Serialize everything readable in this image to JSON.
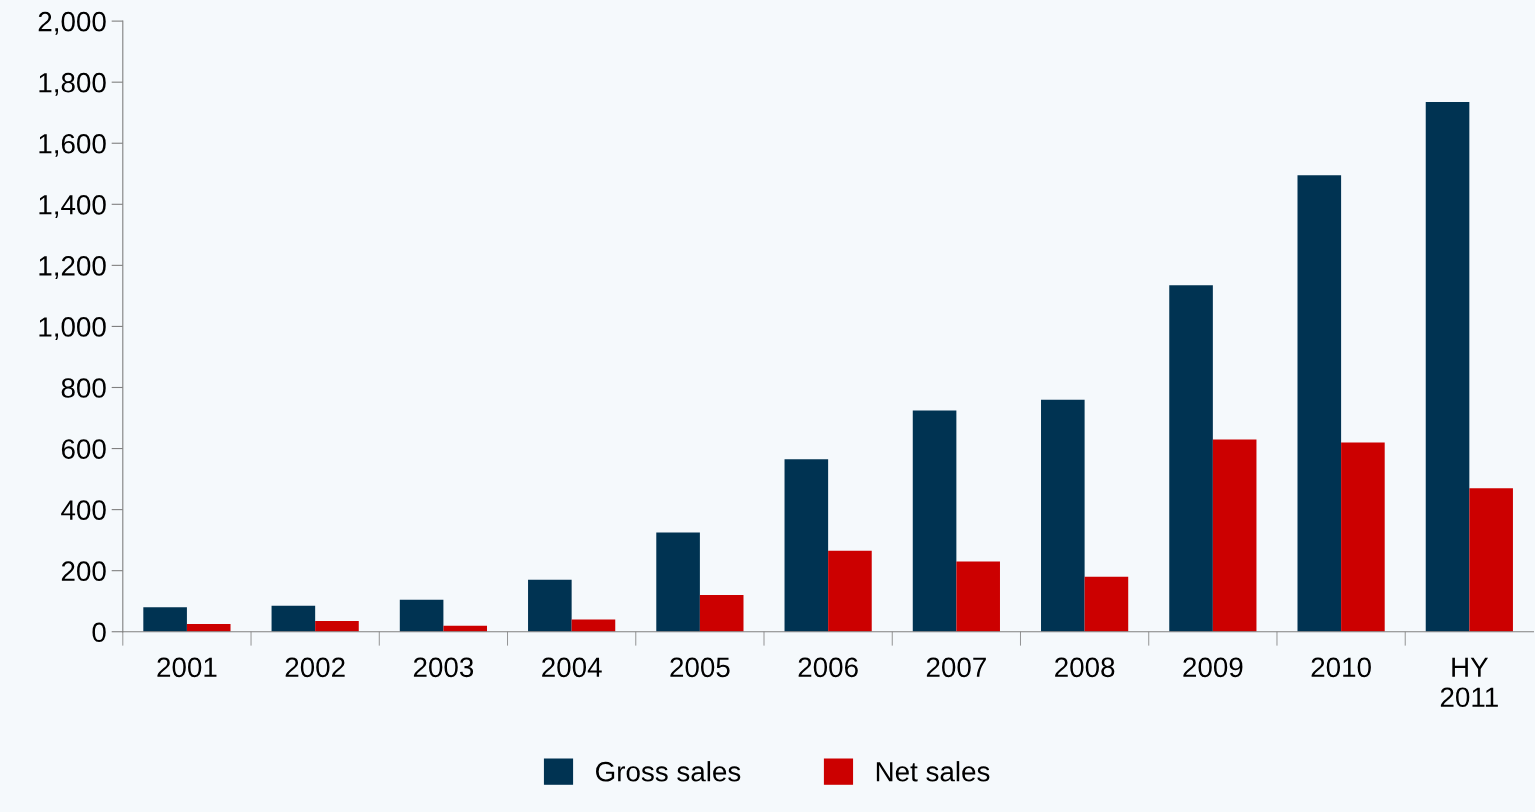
{
  "chart_data": {
    "type": "bar",
    "categories": [
      "2001",
      "2002",
      "2003",
      "2004",
      "2005",
      "2006",
      "2007",
      "2008",
      "2009",
      "2010",
      "HY\n2011"
    ],
    "series": [
      {
        "name": "Gross sales",
        "color": "#003352",
        "values": [
          80,
          85,
          105,
          170,
          325,
          565,
          725,
          760,
          1135,
          1495,
          1735
        ]
      },
      {
        "name": "Net sales",
        "color": "#cc0000",
        "values": [
          25,
          35,
          20,
          40,
          120,
          265,
          230,
          180,
          630,
          620,
          470
        ]
      }
    ],
    "ylim": [
      0,
      2000
    ],
    "yticks": [
      {
        "value": 0,
        "label": "0"
      },
      {
        "value": 200,
        "label": "200"
      },
      {
        "value": 400,
        "label": "400"
      },
      {
        "value": 600,
        "label": "600"
      },
      {
        "value": 800,
        "label": "800"
      },
      {
        "value": 1000,
        "label": "1,000"
      },
      {
        "value": 1200,
        "label": "1,200"
      },
      {
        "value": 1400,
        "label": "1,400"
      },
      {
        "value": 1600,
        "label": "1,600"
      },
      {
        "value": 1800,
        "label": "1,800"
      },
      {
        "value": 2000,
        "label": "2,000"
      }
    ],
    "grid": false,
    "legend": "bottom"
  }
}
